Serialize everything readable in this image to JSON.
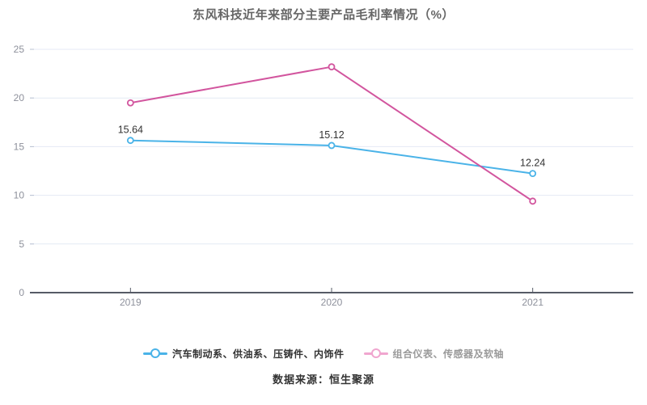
{
  "source": "数据来源：恒生聚源",
  "colors": {
    "series_blue": "#4ab3e8",
    "series_pink": "#d2559e",
    "grid": "#e4eaf4",
    "axis": "#565b66",
    "axis_tick": "#b9c2d2",
    "tick_label": "#8d909b",
    "data_label": "#333333"
  },
  "chart_data": {
    "type": "line",
    "title": "东风科技近年来部分主要产品毛利率情况（%）",
    "categories": [
      "2019",
      "2020",
      "2021"
    ],
    "series": [
      {
        "name": "汽车制动系、供油系、压铸件、内饰件",
        "values": [
          15.64,
          15.12,
          12.24
        ],
        "labels": [
          "15.64",
          "15.12",
          "12.24"
        ],
        "show_labels": true,
        "color": "#4ab3e8"
      },
      {
        "name": "组合仪表、传感器及软轴",
        "values": [
          19.5,
          23.2,
          9.4
        ],
        "show_labels": false,
        "color": "#d2559e"
      }
    ],
    "xlabel": "",
    "ylabel": "",
    "ylim": [
      0,
      25
    ],
    "yticks": [
      0,
      5,
      10,
      15,
      20,
      25
    ],
    "grid": "on",
    "legend_position": "bottom"
  },
  "legend": {
    "items": [
      {
        "series": 0,
        "marker_color": "#4ab3e8",
        "text_color": "#333333",
        "active": true
      },
      {
        "series": 1,
        "marker_color": "#f0a6cf",
        "text_color": "#9a9a9a",
        "active": false
      }
    ]
  }
}
